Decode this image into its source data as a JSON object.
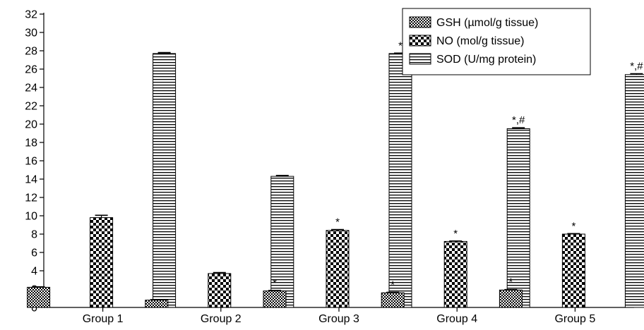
{
  "chart_data": {
    "type": "bar",
    "categories": [
      "Group 1",
      "Group 2",
      "Group 3",
      "Group 4",
      "Group 5"
    ],
    "series": [
      {
        "name": "GSH (µmol/g tissue)",
        "values": [
          2.2,
          0.8,
          1.8,
          1.6,
          1.9
        ],
        "errors": [
          0.05,
          0.05,
          0.05,
          0.05,
          0.05
        ],
        "pattern": "fine-check"
      },
      {
        "name": "NO (mol/g tissue)",
        "values": [
          9.8,
          3.7,
          8.4,
          7.2,
          8.0
        ],
        "errors": [
          0.25,
          0.1,
          0.1,
          0.05,
          0.05
        ],
        "pattern": "checker"
      },
      {
        "name": "SOD (U/mg protein)",
        "values": [
          27.7,
          14.3,
          27.7,
          19.5,
          25.4
        ],
        "errors": [
          0.1,
          0.1,
          0.05,
          0.1,
          0.1
        ],
        "pattern": "horizontal-lines"
      }
    ],
    "annotations": [
      [
        "",
        "",
        ""
      ],
      [
        "",
        "",
        ""
      ],
      [
        "*",
        "*",
        "*"
      ],
      [
        "*",
        "*",
        "*,#"
      ],
      [
        "*",
        "*",
        "*,#"
      ]
    ],
    "ylim": [
      0,
      32
    ],
    "y_ticks": [
      0,
      2,
      4,
      6,
      8,
      10,
      12,
      14,
      16,
      18,
      20,
      22,
      24,
      26,
      28,
      30,
      32
    ],
    "grid": false,
    "legend_position": "top-right",
    "title": "",
    "xlabel": "",
    "ylabel": ""
  }
}
